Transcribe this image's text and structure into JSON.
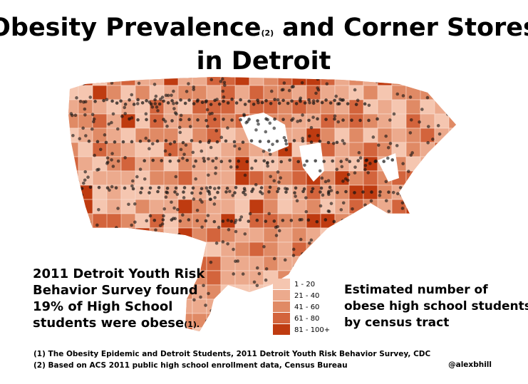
{
  "title": {
    "line1_main": "Obesity Prevalence",
    "line1_note": "(2)",
    "line1_rest": "and Corner Stores",
    "line2": "in Detroit"
  },
  "callout": {
    "lines": [
      "2011 Detroit Youth Risk",
      "Behavior Survey found",
      "19% of High School",
      "students were obese"
    ],
    "note": "(1)."
  },
  "legend": {
    "title_lines": [
      "Estimated number of",
      "obese high school students",
      "by census tract"
    ],
    "bins": [
      {
        "label": "1 - 20",
        "color": "#f5c6b0"
      },
      {
        "label": "21 - 40",
        "color": "#ecaa8d"
      },
      {
        "label": "41 - 60",
        "color": "#e08a65"
      },
      {
        "label": "61 - 80",
        "color": "#d3643c"
      },
      {
        "label": "81 - 100+",
        "color": "#bf3b10"
      }
    ]
  },
  "footnotes": [
    "(1) The Obesity Epidemic and Detroit Students, 2011 Detroit Youth Risk Behavior Survey, CDC",
    "(2) Based on ACS 2011 public high school enrollment data, Census Bureau"
  ],
  "credit": "@alexbhill"
}
